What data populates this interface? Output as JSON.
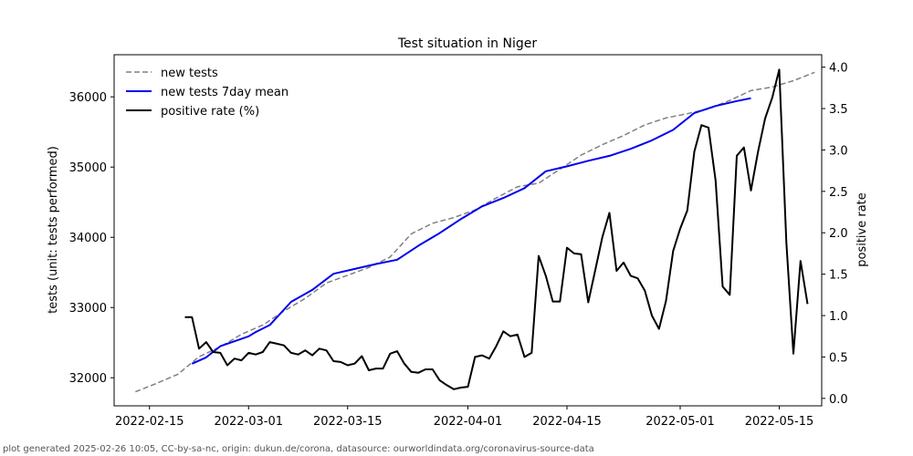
{
  "chart_data": {
    "type": "line",
    "title": "Test situation in Niger",
    "ylabel": "tests (unit: tests performed)",
    "y2label": "positive rate",
    "ylim": [
      31600,
      36600
    ],
    "y2lim": [
      -0.09,
      4.15
    ],
    "xlim": [
      "2022-02-10",
      "2022-05-21"
    ],
    "x_ticks": [
      "2022-02-15",
      "2022-03-01",
      "2022-03-15",
      "2022-04-01",
      "2022-04-15",
      "2022-05-01",
      "2022-05-15"
    ],
    "y_ticks": [
      32000,
      33000,
      34000,
      35000,
      36000
    ],
    "y2_ticks": [
      0.0,
      0.5,
      1.0,
      1.5,
      2.0,
      2.5,
      3.0,
      3.5,
      4.0
    ],
    "legend_position": "top-left",
    "grid": false,
    "series": [
      {
        "name": "new tests",
        "axis": "left",
        "color": "#808080",
        "style": "dashed",
        "points": [
          [
            "2022-02-13",
            31800
          ],
          [
            "2022-02-16",
            31920
          ],
          [
            "2022-02-19",
            32050
          ],
          [
            "2022-02-22",
            32300
          ],
          [
            "2022-02-25",
            32440
          ],
          [
            "2022-02-28",
            32620
          ],
          [
            "2022-03-03",
            32750
          ],
          [
            "2022-03-06",
            32950
          ],
          [
            "2022-03-09",
            33130
          ],
          [
            "2022-03-12",
            33350
          ],
          [
            "2022-03-15",
            33460
          ],
          [
            "2022-03-18",
            33570
          ],
          [
            "2022-03-21",
            33720
          ],
          [
            "2022-03-24",
            34050
          ],
          [
            "2022-03-27",
            34200
          ],
          [
            "2022-03-30",
            34280
          ],
          [
            "2022-04-02",
            34390
          ],
          [
            "2022-04-05",
            34560
          ],
          [
            "2022-04-08",
            34720
          ],
          [
            "2022-04-11",
            34770
          ],
          [
            "2022-04-14",
            34970
          ],
          [
            "2022-04-17",
            35170
          ],
          [
            "2022-04-20",
            35320
          ],
          [
            "2022-04-23",
            35450
          ],
          [
            "2022-04-26",
            35600
          ],
          [
            "2022-04-29",
            35700
          ],
          [
            "2022-05-02",
            35760
          ],
          [
            "2022-05-05",
            35830
          ],
          [
            "2022-05-08",
            35950
          ],
          [
            "2022-05-11",
            36090
          ],
          [
            "2022-05-14",
            36140
          ],
          [
            "2022-05-17",
            36230
          ],
          [
            "2022-05-20",
            36350
          ]
        ]
      },
      {
        "name": "new tests 7day mean",
        "axis": "left",
        "color": "#0000ee",
        "style": "solid",
        "points": [
          [
            "2022-02-21",
            32200
          ],
          [
            "2022-02-23",
            32290
          ],
          [
            "2022-02-25",
            32450
          ],
          [
            "2022-02-27",
            32520
          ],
          [
            "2022-02-29",
            32590
          ],
          [
            "2022-03-02",
            32650
          ],
          [
            "2022-03-04",
            32750
          ],
          [
            "2022-03-07",
            33080
          ],
          [
            "2022-03-10",
            33250
          ],
          [
            "2022-03-13",
            33480
          ],
          [
            "2022-03-16",
            33550
          ],
          [
            "2022-03-19",
            33620
          ],
          [
            "2022-03-22",
            33680
          ],
          [
            "2022-03-25",
            33880
          ],
          [
            "2022-03-28",
            34060
          ],
          [
            "2022-03-31",
            34260
          ],
          [
            "2022-04-03",
            34440
          ],
          [
            "2022-04-06",
            34560
          ],
          [
            "2022-04-09",
            34700
          ],
          [
            "2022-04-12",
            34940
          ],
          [
            "2022-04-15",
            35010
          ],
          [
            "2022-04-18",
            35090
          ],
          [
            "2022-04-21",
            35160
          ],
          [
            "2022-04-24",
            35260
          ],
          [
            "2022-04-27",
            35380
          ],
          [
            "2022-04-30",
            35530
          ],
          [
            "2022-05-03",
            35770
          ],
          [
            "2022-05-06",
            35870
          ],
          [
            "2022-05-09",
            35940
          ],
          [
            "2022-05-11",
            35980
          ]
        ]
      },
      {
        "name": "positive rate (%)",
        "axis": "right",
        "color": "#000000",
        "style": "solid",
        "points": [
          [
            "2022-02-20",
            0.98
          ],
          [
            "2022-02-21",
            0.98
          ],
          [
            "2022-02-22",
            0.6
          ],
          [
            "2022-02-23",
            0.68
          ],
          [
            "2022-02-24",
            0.56
          ],
          [
            "2022-02-25",
            0.55
          ],
          [
            "2022-02-26",
            0.4
          ],
          [
            "2022-02-27",
            0.48
          ],
          [
            "2022-02-28",
            0.46
          ],
          [
            "2022-03-01",
            0.55
          ],
          [
            "2022-03-02",
            0.53
          ],
          [
            "2022-03-03",
            0.56
          ],
          [
            "2022-03-04",
            0.68
          ],
          [
            "2022-03-05",
            0.66
          ],
          [
            "2022-03-06",
            0.64
          ],
          [
            "2022-03-07",
            0.55
          ],
          [
            "2022-03-08",
            0.53
          ],
          [
            "2022-03-09",
            0.58
          ],
          [
            "2022-03-10",
            0.52
          ],
          [
            "2022-03-11",
            0.6
          ],
          [
            "2022-03-12",
            0.58
          ],
          [
            "2022-03-13",
            0.45
          ],
          [
            "2022-03-14",
            0.44
          ],
          [
            "2022-03-15",
            0.4
          ],
          [
            "2022-03-16",
            0.42
          ],
          [
            "2022-03-17",
            0.51
          ],
          [
            "2022-03-18",
            0.34
          ],
          [
            "2022-03-19",
            0.36
          ],
          [
            "2022-03-20",
            0.36
          ],
          [
            "2022-03-21",
            0.54
          ],
          [
            "2022-03-22",
            0.57
          ],
          [
            "2022-03-23",
            0.42
          ],
          [
            "2022-03-24",
            0.32
          ],
          [
            "2022-03-25",
            0.31
          ],
          [
            "2022-03-26",
            0.35
          ],
          [
            "2022-03-27",
            0.35
          ],
          [
            "2022-03-28",
            0.22
          ],
          [
            "2022-03-29",
            0.16
          ],
          [
            "2022-03-30",
            0.11
          ],
          [
            "2022-03-31",
            0.13
          ],
          [
            "2022-04-01",
            0.14
          ],
          [
            "2022-04-02",
            0.5
          ],
          [
            "2022-04-03",
            0.52
          ],
          [
            "2022-04-04",
            0.48
          ],
          [
            "2022-04-05",
            0.63
          ],
          [
            "2022-04-06",
            0.81
          ],
          [
            "2022-04-07",
            0.75
          ],
          [
            "2022-04-08",
            0.77
          ],
          [
            "2022-04-09",
            0.5
          ],
          [
            "2022-04-10",
            0.55
          ],
          [
            "2022-04-11",
            1.72
          ],
          [
            "2022-04-12",
            1.48
          ],
          [
            "2022-04-13",
            1.17
          ],
          [
            "2022-04-14",
            1.17
          ],
          [
            "2022-04-15",
            1.82
          ],
          [
            "2022-04-16",
            1.75
          ],
          [
            "2022-04-17",
            1.74
          ],
          [
            "2022-04-18",
            1.16
          ],
          [
            "2022-04-19",
            1.55
          ],
          [
            "2022-04-20",
            1.95
          ],
          [
            "2022-04-21",
            2.24
          ],
          [
            "2022-04-22",
            1.54
          ],
          [
            "2022-04-23",
            1.64
          ],
          [
            "2022-04-24",
            1.48
          ],
          [
            "2022-04-25",
            1.45
          ],
          [
            "2022-04-26",
            1.3
          ],
          [
            "2022-04-27",
            1.0
          ],
          [
            "2022-04-28",
            0.84
          ],
          [
            "2022-04-29",
            1.18
          ],
          [
            "2022-04-30",
            1.78
          ],
          [
            "2022-05-01",
            2.05
          ],
          [
            "2022-05-02",
            2.27
          ],
          [
            "2022-05-03",
            2.98
          ],
          [
            "2022-05-04",
            3.3
          ],
          [
            "2022-05-05",
            3.27
          ],
          [
            "2022-05-06",
            2.63
          ],
          [
            "2022-05-07",
            1.35
          ],
          [
            "2022-05-08",
            1.25
          ],
          [
            "2022-05-09",
            2.93
          ],
          [
            "2022-05-10",
            3.03
          ],
          [
            "2022-05-11",
            2.51
          ],
          [
            "2022-05-12",
            2.98
          ],
          [
            "2022-05-13",
            3.38
          ],
          [
            "2022-05-14",
            3.63
          ],
          [
            "2022-05-15",
            3.97
          ],
          [
            "2022-05-16",
            1.88
          ],
          [
            "2022-05-17",
            0.54
          ],
          [
            "2022-05-18",
            1.66
          ],
          [
            "2022-05-19",
            1.14
          ]
        ]
      }
    ]
  },
  "footer": "plot generated 2025-02-26 10:05, CC-by-sa-nc, origin: dukun.de/corona, datasource: ourworldindata.org/coronavirus-source-data"
}
